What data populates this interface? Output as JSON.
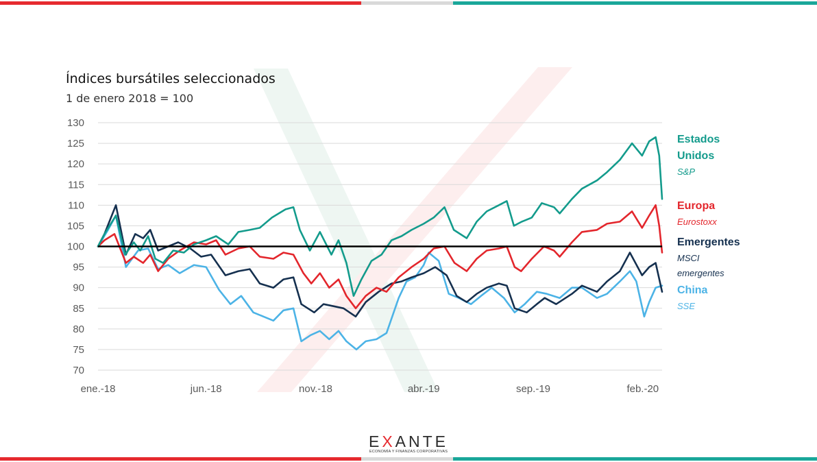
{
  "colors": {
    "red": "#e62a2f",
    "grey": "#d9d9d9",
    "teal": "#1aa79a",
    "sp": "#139b8c",
    "eurostoxx": "#e3262c",
    "msci": "#15304f",
    "sse": "#4cb3e6",
    "baseline": "#000000",
    "grid": "#d9d9d9"
  },
  "chart_data": {
    "type": "line",
    "title": "Índices bursátiles seleccionados",
    "subtitle": "1 de enero 2018 = 100",
    "xlabel": "",
    "ylabel": "",
    "ylim": [
      70,
      130
    ],
    "yticks": [
      70,
      75,
      80,
      85,
      90,
      95,
      100,
      105,
      110,
      115,
      120,
      125,
      130
    ],
    "x_range": [
      "2018-01-01",
      "2020-02-28"
    ],
    "x_ticks": [
      {
        "date": "2018-01-01",
        "label": "ene.-18"
      },
      {
        "date": "2018-06-01",
        "label": "jun.-18"
      },
      {
        "date": "2018-11-01",
        "label": "nov.-18"
      },
      {
        "date": "2019-04-01",
        "label": "abr.-19"
      },
      {
        "date": "2019-09-01",
        "label": "sep.-19"
      },
      {
        "date": "2020-02-01",
        "label": "feb.-20"
      }
    ],
    "reference_line": 100,
    "grid": true,
    "legend_position": "right",
    "series": [
      {
        "name": "Estados Unidos",
        "sublabel": "S&P",
        "color_key": "sp",
        "points": [
          [
            "2018-01-01",
            100
          ],
          [
            "2018-01-10",
            103
          ],
          [
            "2018-01-26",
            107.5
          ],
          [
            "2018-02-08",
            98
          ],
          [
            "2018-02-20",
            101
          ],
          [
            "2018-03-01",
            99
          ],
          [
            "2018-03-12",
            102.5
          ],
          [
            "2018-03-22",
            97
          ],
          [
            "2018-04-02",
            96
          ],
          [
            "2018-04-16",
            99
          ],
          [
            "2018-05-01",
            98.5
          ],
          [
            "2018-05-15",
            100.5
          ],
          [
            "2018-06-01",
            101.5
          ],
          [
            "2018-06-15",
            102.5
          ],
          [
            "2018-07-02",
            100.5
          ],
          [
            "2018-07-16",
            103.5
          ],
          [
            "2018-08-01",
            104
          ],
          [
            "2018-08-15",
            104.5
          ],
          [
            "2018-09-01",
            107
          ],
          [
            "2018-09-20",
            109
          ],
          [
            "2018-10-01",
            109.5
          ],
          [
            "2018-10-10",
            104
          ],
          [
            "2018-10-24",
            99
          ],
          [
            "2018-11-07",
            103.5
          ],
          [
            "2018-11-23",
            98
          ],
          [
            "2018-12-03",
            101.5
          ],
          [
            "2018-12-14",
            96
          ],
          [
            "2018-12-24",
            88
          ],
          [
            "2019-01-04",
            92
          ],
          [
            "2019-01-18",
            96.5
          ],
          [
            "2019-02-01",
            98
          ],
          [
            "2019-02-15",
            101.5
          ],
          [
            "2019-03-01",
            102.5
          ],
          [
            "2019-03-15",
            104
          ],
          [
            "2019-04-01",
            105.5
          ],
          [
            "2019-04-15",
            107
          ],
          [
            "2019-04-30",
            109.5
          ],
          [
            "2019-05-13",
            104
          ],
          [
            "2019-05-31",
            102
          ],
          [
            "2019-06-14",
            106
          ],
          [
            "2019-06-28",
            108.5
          ],
          [
            "2019-07-15",
            110
          ],
          [
            "2019-07-26",
            111
          ],
          [
            "2019-08-05",
            105
          ],
          [
            "2019-08-16",
            106
          ],
          [
            "2019-08-30",
            107
          ],
          [
            "2019-09-13",
            110.5
          ],
          [
            "2019-09-30",
            109.5
          ],
          [
            "2019-10-08",
            108
          ],
          [
            "2019-10-25",
            111.5
          ],
          [
            "2019-11-08",
            114
          ],
          [
            "2019-11-29",
            116
          ],
          [
            "2019-12-13",
            118
          ],
          [
            "2019-12-31",
            121
          ],
          [
            "2020-01-17",
            125
          ],
          [
            "2020-01-31",
            122
          ],
          [
            "2020-02-10",
            125.5
          ],
          [
            "2020-02-19",
            126.5
          ],
          [
            "2020-02-24",
            122
          ],
          [
            "2020-02-28",
            111.5
          ]
        ]
      },
      {
        "name": "Europa",
        "sublabel": "Eurostoxx",
        "color_key": "eurostoxx",
        "points": [
          [
            "2018-01-01",
            100
          ],
          [
            "2018-01-10",
            101.5
          ],
          [
            "2018-01-24",
            103
          ],
          [
            "2018-02-09",
            96
          ],
          [
            "2018-02-20",
            97.5
          ],
          [
            "2018-03-05",
            96
          ],
          [
            "2018-03-15",
            98
          ],
          [
            "2018-03-26",
            94
          ],
          [
            "2018-04-09",
            97
          ],
          [
            "2018-04-25",
            99
          ],
          [
            "2018-05-15",
            101
          ],
          [
            "2018-06-01",
            100.5
          ],
          [
            "2018-06-15",
            101.5
          ],
          [
            "2018-06-28",
            98
          ],
          [
            "2018-07-16",
            99.5
          ],
          [
            "2018-08-01",
            100
          ],
          [
            "2018-08-15",
            97.5
          ],
          [
            "2018-09-03",
            97
          ],
          [
            "2018-09-17",
            98.5
          ],
          [
            "2018-10-01",
            98
          ],
          [
            "2018-10-15",
            93.5
          ],
          [
            "2018-10-26",
            91
          ],
          [
            "2018-11-07",
            93.5
          ],
          [
            "2018-11-20",
            90
          ],
          [
            "2018-12-03",
            92
          ],
          [
            "2018-12-14",
            88
          ],
          [
            "2018-12-27",
            85
          ],
          [
            "2019-01-10",
            88
          ],
          [
            "2019-01-25",
            90
          ],
          [
            "2019-02-08",
            89
          ],
          [
            "2019-02-25",
            92.5
          ],
          [
            "2019-03-15",
            95
          ],
          [
            "2019-04-01",
            97
          ],
          [
            "2019-04-15",
            99.5
          ],
          [
            "2019-04-30",
            100
          ],
          [
            "2019-05-14",
            96
          ],
          [
            "2019-05-31",
            94
          ],
          [
            "2019-06-14",
            97
          ],
          [
            "2019-06-28",
            99
          ],
          [
            "2019-07-15",
            99.5
          ],
          [
            "2019-07-26",
            100
          ],
          [
            "2019-08-06",
            95
          ],
          [
            "2019-08-15",
            94
          ],
          [
            "2019-08-30",
            97
          ],
          [
            "2019-09-16",
            100
          ],
          [
            "2019-09-30",
            99
          ],
          [
            "2019-10-08",
            97.5
          ],
          [
            "2019-10-25",
            101
          ],
          [
            "2019-11-08",
            103.5
          ],
          [
            "2019-11-29",
            104
          ],
          [
            "2019-12-13",
            105.5
          ],
          [
            "2019-12-31",
            106
          ],
          [
            "2020-01-17",
            108.5
          ],
          [
            "2020-01-31",
            104.5
          ],
          [
            "2020-02-10",
            107.5
          ],
          [
            "2020-02-19",
            110
          ],
          [
            "2020-02-24",
            105
          ],
          [
            "2020-02-28",
            98.5
          ]
        ]
      },
      {
        "name": "Emergentes",
        "sublabel": "MSCI\nemergentes",
        "color_key": "msci",
        "points": [
          [
            "2018-01-01",
            100
          ],
          [
            "2018-01-10",
            103
          ],
          [
            "2018-01-26",
            110
          ],
          [
            "2018-02-09",
            98
          ],
          [
            "2018-02-22",
            103
          ],
          [
            "2018-03-05",
            102
          ],
          [
            "2018-03-15",
            104
          ],
          [
            "2018-03-26",
            99
          ],
          [
            "2018-04-09",
            100
          ],
          [
            "2018-04-23",
            101
          ],
          [
            "2018-05-10",
            99.5
          ],
          [
            "2018-05-25",
            97.5
          ],
          [
            "2018-06-08",
            98
          ],
          [
            "2018-06-28",
            93
          ],
          [
            "2018-07-16",
            94
          ],
          [
            "2018-08-01",
            94.5
          ],
          [
            "2018-08-15",
            91
          ],
          [
            "2018-09-03",
            90
          ],
          [
            "2018-09-17",
            92
          ],
          [
            "2018-10-01",
            92.5
          ],
          [
            "2018-10-12",
            86
          ],
          [
            "2018-10-30",
            84
          ],
          [
            "2018-11-12",
            86
          ],
          [
            "2018-11-26",
            85.5
          ],
          [
            "2018-12-10",
            85
          ],
          [
            "2018-12-27",
            83
          ],
          [
            "2019-01-10",
            86.5
          ],
          [
            "2019-01-28",
            89
          ],
          [
            "2019-02-15",
            91
          ],
          [
            "2019-03-01",
            91.5
          ],
          [
            "2019-03-15",
            92.5
          ],
          [
            "2019-04-01",
            93.5
          ],
          [
            "2019-04-17",
            95
          ],
          [
            "2019-05-03",
            93
          ],
          [
            "2019-05-17",
            88
          ],
          [
            "2019-05-31",
            86.5
          ],
          [
            "2019-06-14",
            88.5
          ],
          [
            "2019-06-28",
            90
          ],
          [
            "2019-07-15",
            91
          ],
          [
            "2019-07-26",
            90.5
          ],
          [
            "2019-08-06",
            85
          ],
          [
            "2019-08-23",
            84
          ],
          [
            "2019-09-06",
            86
          ],
          [
            "2019-09-17",
            87.5
          ],
          [
            "2019-10-03",
            86
          ],
          [
            "2019-10-25",
            88.5
          ],
          [
            "2019-11-08",
            90.5
          ],
          [
            "2019-11-29",
            89
          ],
          [
            "2019-12-13",
            91.5
          ],
          [
            "2019-12-31",
            94
          ],
          [
            "2020-01-14",
            98.5
          ],
          [
            "2020-01-31",
            93
          ],
          [
            "2020-02-10",
            95
          ],
          [
            "2020-02-19",
            96
          ],
          [
            "2020-02-28",
            89
          ]
        ]
      },
      {
        "name": "China",
        "sublabel": "SSE",
        "color_key": "sse",
        "points": [
          [
            "2018-01-01",
            100
          ],
          [
            "2018-01-15",
            104
          ],
          [
            "2018-01-26",
            107.5
          ],
          [
            "2018-02-09",
            95
          ],
          [
            "2018-02-26",
            99
          ],
          [
            "2018-03-12",
            99.5
          ],
          [
            "2018-03-26",
            94.5
          ],
          [
            "2018-04-09",
            95.5
          ],
          [
            "2018-04-25",
            93.5
          ],
          [
            "2018-05-15",
            95.5
          ],
          [
            "2018-06-01",
            95
          ],
          [
            "2018-06-19",
            89.5
          ],
          [
            "2018-07-05",
            86
          ],
          [
            "2018-07-20",
            88
          ],
          [
            "2018-08-06",
            84
          ],
          [
            "2018-08-20",
            83
          ],
          [
            "2018-09-03",
            82
          ],
          [
            "2018-09-17",
            84.5
          ],
          [
            "2018-10-01",
            85
          ],
          [
            "2018-10-12",
            77
          ],
          [
            "2018-10-25",
            78.5
          ],
          [
            "2018-11-07",
            79.5
          ],
          [
            "2018-11-20",
            77.5
          ],
          [
            "2018-12-03",
            79.5
          ],
          [
            "2018-12-14",
            77
          ],
          [
            "2018-12-28",
            75
          ],
          [
            "2019-01-10",
            77
          ],
          [
            "2019-01-25",
            77.5
          ],
          [
            "2019-02-08",
            79
          ],
          [
            "2019-02-25",
            87.5
          ],
          [
            "2019-03-08",
            91.5
          ],
          [
            "2019-03-20",
            92.5
          ],
          [
            "2019-04-01",
            95.5
          ],
          [
            "2019-04-08",
            98.5
          ],
          [
            "2019-04-22",
            96.5
          ],
          [
            "2019-05-06",
            88.5
          ],
          [
            "2019-05-20",
            87.5
          ],
          [
            "2019-06-06",
            86
          ],
          [
            "2019-06-20",
            88
          ],
          [
            "2019-07-05",
            90
          ],
          [
            "2019-07-22",
            87.5
          ],
          [
            "2019-08-06",
            84
          ],
          [
            "2019-08-20",
            86
          ],
          [
            "2019-09-06",
            89
          ],
          [
            "2019-09-20",
            88.5
          ],
          [
            "2019-10-08",
            87.5
          ],
          [
            "2019-10-25",
            90
          ],
          [
            "2019-11-08",
            90
          ],
          [
            "2019-11-29",
            87.5
          ],
          [
            "2019-12-13",
            88.5
          ],
          [
            "2019-12-31",
            91.5
          ],
          [
            "2020-01-14",
            94
          ],
          [
            "2020-01-23",
            91.5
          ],
          [
            "2020-02-03",
            83
          ],
          [
            "2020-02-10",
            86.5
          ],
          [
            "2020-02-19",
            90
          ],
          [
            "2020-02-28",
            90.5
          ]
        ]
      }
    ]
  },
  "legend": [
    {
      "name": "Estados\nUnidos",
      "sublabel": "S&P",
      "color_key": "sp"
    },
    {
      "name": "Europa",
      "sublabel": "Eurostoxx",
      "color_key": "eurostoxx"
    },
    {
      "name": "Emergentes",
      "sublabel": "MSCI\nemergentes",
      "color_key": "msci"
    },
    {
      "name": "China",
      "sublabel": "SSE",
      "color_key": "sse"
    }
  ],
  "footer": {
    "logo_prefix": "E",
    "logo_x": "X",
    "logo_suffix": "ANTE",
    "tagline": "ECONOMÍA Y FINANZAS CORPORATIVAS"
  }
}
